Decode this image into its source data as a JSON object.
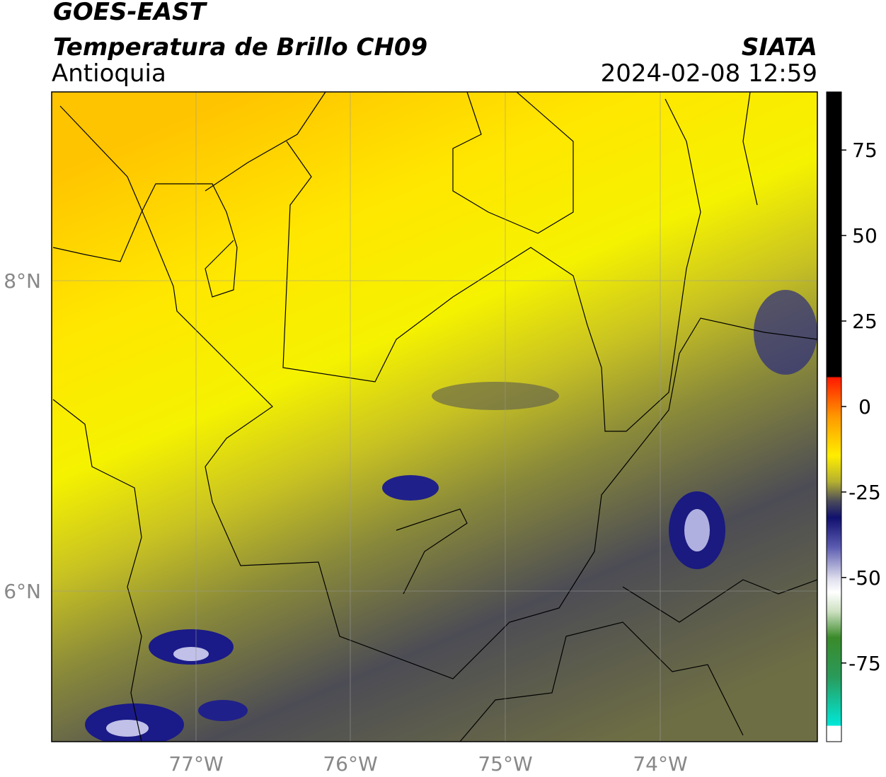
{
  "header": {
    "satellite": "GOES-EAST",
    "product": "Temperatura de Brillo CH09",
    "region": "Antioquia",
    "source": "SIATA",
    "timestamp": "2024-02-08 12:59"
  },
  "map": {
    "lat_labels": [
      "8°N",
      "6°N"
    ],
    "lon_labels": [
      "77°W",
      "76°W",
      "75°W",
      "74°W"
    ]
  },
  "colorbar": {
    "range": [
      -98,
      92
    ],
    "ticks": [
      75,
      50,
      25,
      0,
      -25,
      -50,
      -75
    ]
  }
}
